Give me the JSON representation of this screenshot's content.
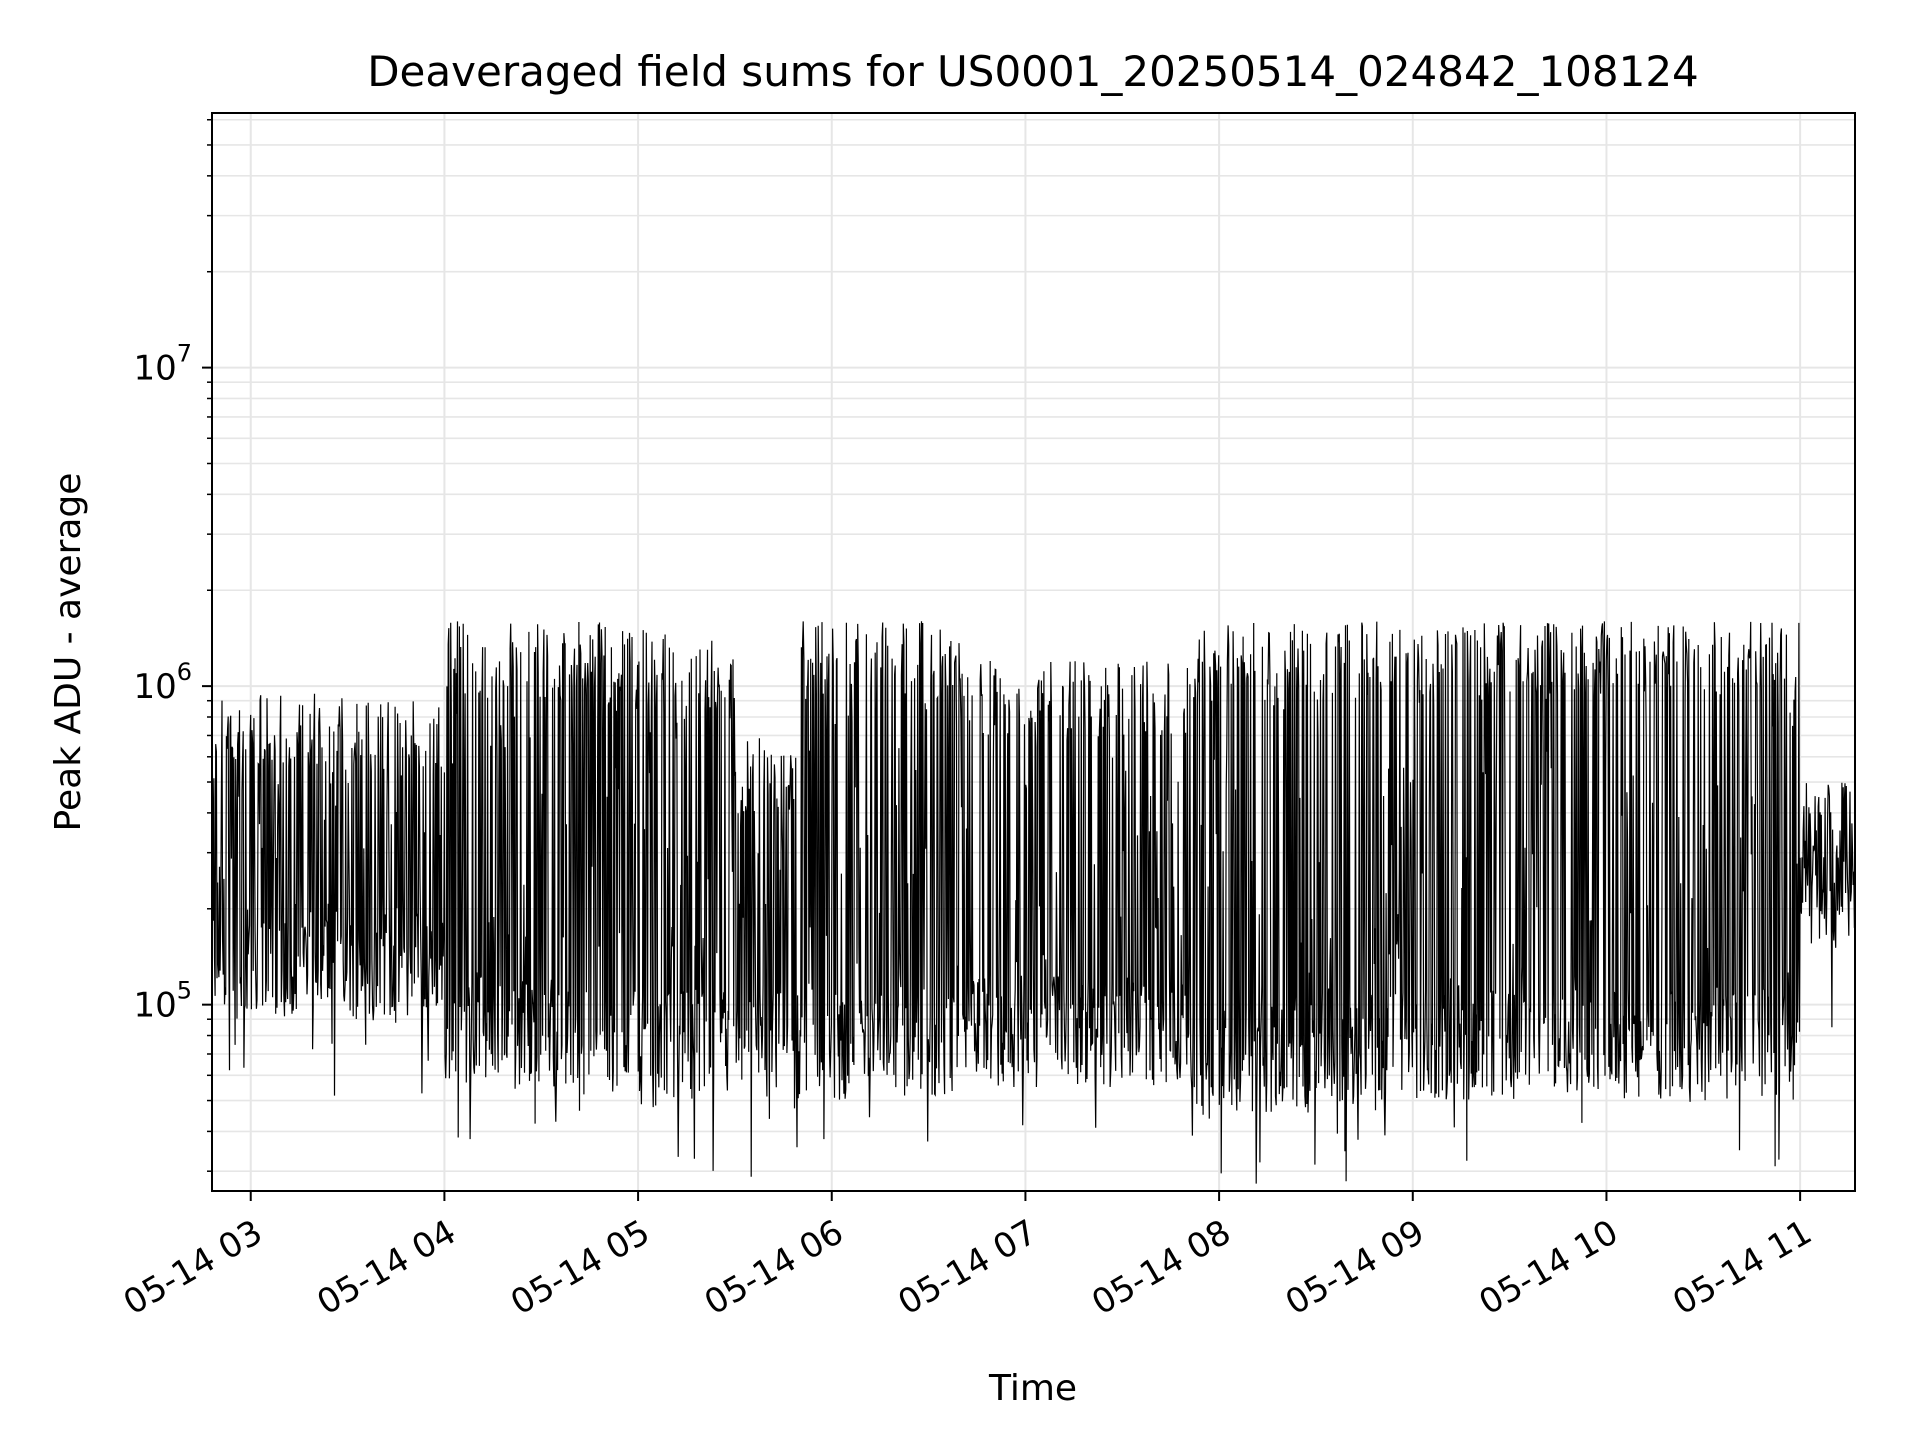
{
  "chart_data": {
    "type": "line",
    "title": "Deaveraged field sums for US0001_20250514_024842_108124",
    "xlabel": "Time",
    "ylabel": "Peak ADU - average",
    "y_scale": "log",
    "ylim": [
      26000,
      63000000
    ],
    "xlim": [
      "2025-05-14 02:48",
      "2025-05-14 11:17"
    ],
    "grid": true,
    "x_ticks": [
      "05-14 03",
      "05-14 04",
      "05-14 05",
      "05-14 06",
      "05-14 07",
      "05-14 08",
      "05-14 09",
      "05-14 10",
      "05-14 11"
    ],
    "y_ticks": [
      {
        "value": 100000,
        "base": "10",
        "exp": "5"
      },
      {
        "value": 1000000,
        "base": "10",
        "exp": "6"
      },
      {
        "value": 10000000,
        "base": "10",
        "exp": "7"
      }
    ],
    "line_color": "#000000",
    "series": [
      {
        "segments": [
          {
            "start": "2025-05-14 02:48",
            "end": "2025-05-14 03:30",
            "low": 90000,
            "high": 950000
          },
          {
            "start": "2025-05-14 03:30",
            "end": "2025-05-14 04:00",
            "low": 90000,
            "high": 900000
          },
          {
            "start": "2025-05-14 04:00",
            "end": "2025-05-14 04:50",
            "low": 55000,
            "high": 1600000
          },
          {
            "start": "2025-05-14 04:50",
            "end": "2025-05-14 05:30",
            "low": 50000,
            "high": 1500000
          },
          {
            "start": "2025-05-14 05:30",
            "end": "2025-05-14 05:50",
            "low": 50000,
            "high": 700000
          },
          {
            "start": "2025-05-14 05:50",
            "end": "2025-05-14 06:40",
            "low": 50000,
            "high": 1600000
          },
          {
            "start": "2025-05-14 06:40",
            "end": "2025-05-14 07:50",
            "low": 55000,
            "high": 1200000
          },
          {
            "start": "2025-05-14 07:50",
            "end": "2025-05-14 08:50",
            "low": 45000,
            "high": 1600000
          },
          {
            "start": "2025-05-14 08:50",
            "end": "2025-05-14 11:00",
            "low": 50000,
            "high": 1600000
          },
          {
            "start": "2025-05-14 11:00",
            "end": "2025-05-14 11:17",
            "low": 150000,
            "high": 500000
          }
        ]
      }
    ]
  }
}
